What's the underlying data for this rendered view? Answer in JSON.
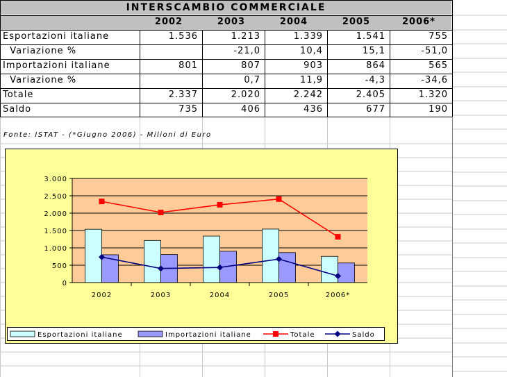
{
  "table": {
    "title": "INTERSCAMBIO COMMERCIALE",
    "years": [
      "2002",
      "2003",
      "2004",
      "2005",
      "2006*"
    ],
    "rows": [
      {
        "label": "Esportazioni italiane",
        "values": [
          "1.536",
          "1.213",
          "1.339",
          "1.541",
          "755"
        ]
      },
      {
        "label": "  Variazione %",
        "values": [
          "",
          "-21,0",
          "10,4",
          "15,1",
          "-51,0"
        ]
      },
      {
        "label": "Importazioni italiane",
        "values": [
          "801",
          "807",
          "903",
          "864",
          "565"
        ]
      },
      {
        "label": "  Variazione %",
        "values": [
          "",
          "0,7",
          "11,9",
          "-4,3",
          "-34,6"
        ]
      },
      {
        "label": "Totale",
        "values": [
          "2.337",
          "2.020",
          "2.242",
          "2.405",
          "1.320"
        ]
      },
      {
        "label": "Saldo",
        "values": [
          "735",
          "406",
          "436",
          "677",
          "190"
        ]
      }
    ]
  },
  "source_note": "Fonte: ISTAT - (*Giugno 2006) - Milioni di Euro",
  "colors": {
    "chart_background": "#ffff99",
    "plot_background": "#ffcc99",
    "export_bar": "#ccffff",
    "import_bar": "#9999ff",
    "totale_line": "#ff0000",
    "saldo_line": "#000080",
    "title_cell": "#c0c0c0"
  },
  "chart_data": {
    "type": "bar",
    "categories": [
      "2002",
      "2003",
      "2004",
      "2005",
      "2006*"
    ],
    "ylim": [
      0,
      3000
    ],
    "yticks": [
      0,
      500,
      1000,
      1500,
      2000,
      2500,
      3000
    ],
    "ytick_labels": [
      "0",
      "500",
      "1.000",
      "1.500",
      "2.000",
      "2.500",
      "3.000"
    ],
    "grid": true,
    "legend_position": "bottom",
    "series": [
      {
        "name": "Esportazioni italiane",
        "kind": "bar",
        "values": [
          1536,
          1213,
          1339,
          1541,
          755
        ]
      },
      {
        "name": "Importazioni italiane",
        "kind": "bar",
        "values": [
          801,
          807,
          903,
          864,
          565
        ]
      },
      {
        "name": "Totale",
        "kind": "line",
        "marker": "square",
        "values": [
          2337,
          2020,
          2242,
          2405,
          1320
        ]
      },
      {
        "name": "Saldo",
        "kind": "line",
        "marker": "diamond",
        "values": [
          735,
          406,
          436,
          677,
          190
        ]
      }
    ]
  }
}
